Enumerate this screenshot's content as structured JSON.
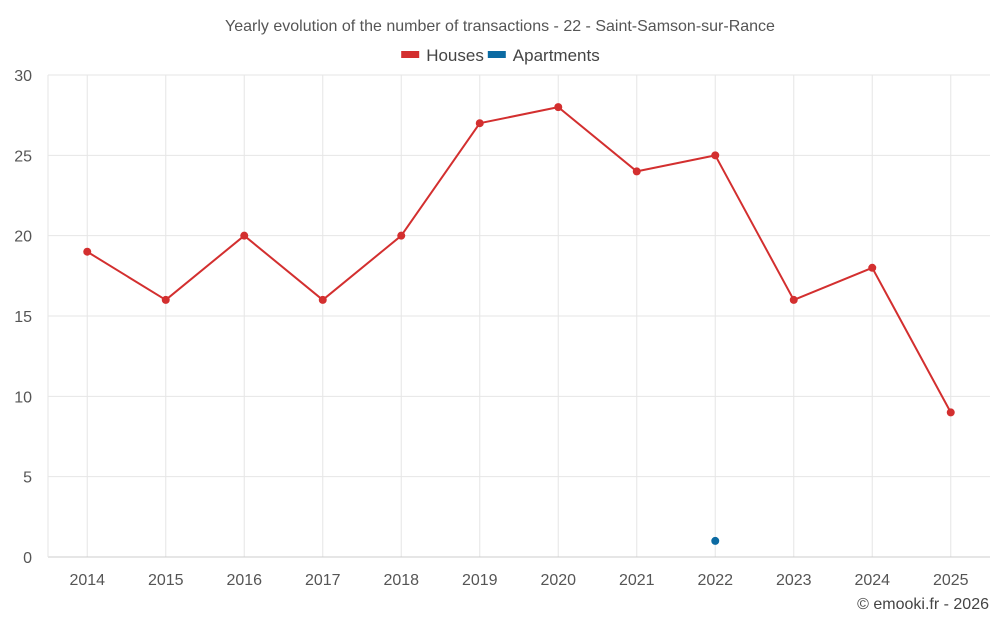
{
  "chart_data": {
    "type": "line",
    "title": "Yearly evolution of the number of transactions - 22 - Saint-Samson-sur-Rance",
    "categories": [
      "2014",
      "2015",
      "2016",
      "2017",
      "2018",
      "2019",
      "2020",
      "2021",
      "2022",
      "2023",
      "2024",
      "2025"
    ],
    "series": [
      {
        "name": "Houses",
        "color": "#d32f2f",
        "values": [
          19,
          16,
          20,
          16,
          20,
          27,
          28,
          24,
          25,
          16,
          18,
          9
        ]
      },
      {
        "name": "Apartments",
        "color": "#0b6aa2",
        "values": [
          null,
          null,
          null,
          null,
          null,
          null,
          null,
          null,
          1,
          null,
          null,
          null
        ]
      }
    ],
    "ylim": [
      0,
      30
    ],
    "yticks": [
      0,
      5,
      10,
      15,
      20,
      25,
      30
    ],
    "grid": true,
    "legend_position": "top-center"
  },
  "credit": "© emooki.fr - 2026"
}
